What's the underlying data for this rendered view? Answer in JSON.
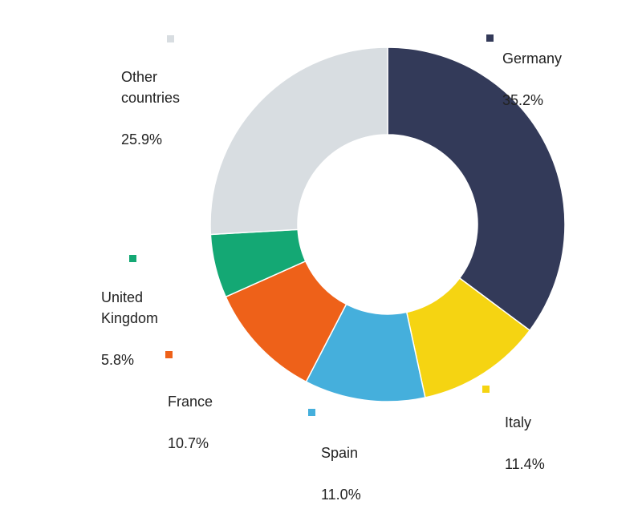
{
  "chart_data": {
    "type": "pie",
    "variant": "donut",
    "title": "",
    "categories": [
      "Germany",
      "Italy",
      "Spain",
      "France",
      "United Kingdom",
      "Other countries"
    ],
    "values": [
      35.2,
      11.4,
      11.0,
      10.7,
      5.8,
      25.9
    ],
    "unit": "%",
    "colors": [
      "#333A59",
      "#F5D412",
      "#45AFDC",
      "#EE6119",
      "#14A874",
      "#D8DDE1"
    ],
    "start_angle_deg": 0,
    "direction": "clockwise",
    "legend_position": "labels-outside"
  },
  "labels": [
    {
      "name": "Germany",
      "text": "Germany",
      "value": "35.2%",
      "color": "#333A59"
    },
    {
      "name": "Italy",
      "text": "Italy",
      "value": "11.4%",
      "color": "#F5D412"
    },
    {
      "name": "Spain",
      "text": "Spain",
      "value": "11.0%",
      "color": "#45AFDC"
    },
    {
      "name": "France",
      "text": "France",
      "value": "10.7%",
      "color": "#EE6119"
    },
    {
      "name": "United Kingdom",
      "text": "United\nKingdom",
      "value": "5.8%",
      "color": "#14A874"
    },
    {
      "name": "Other countries",
      "text": "Other\ncountries",
      "value": "25.9%",
      "color": "#D8DDE1"
    }
  ]
}
